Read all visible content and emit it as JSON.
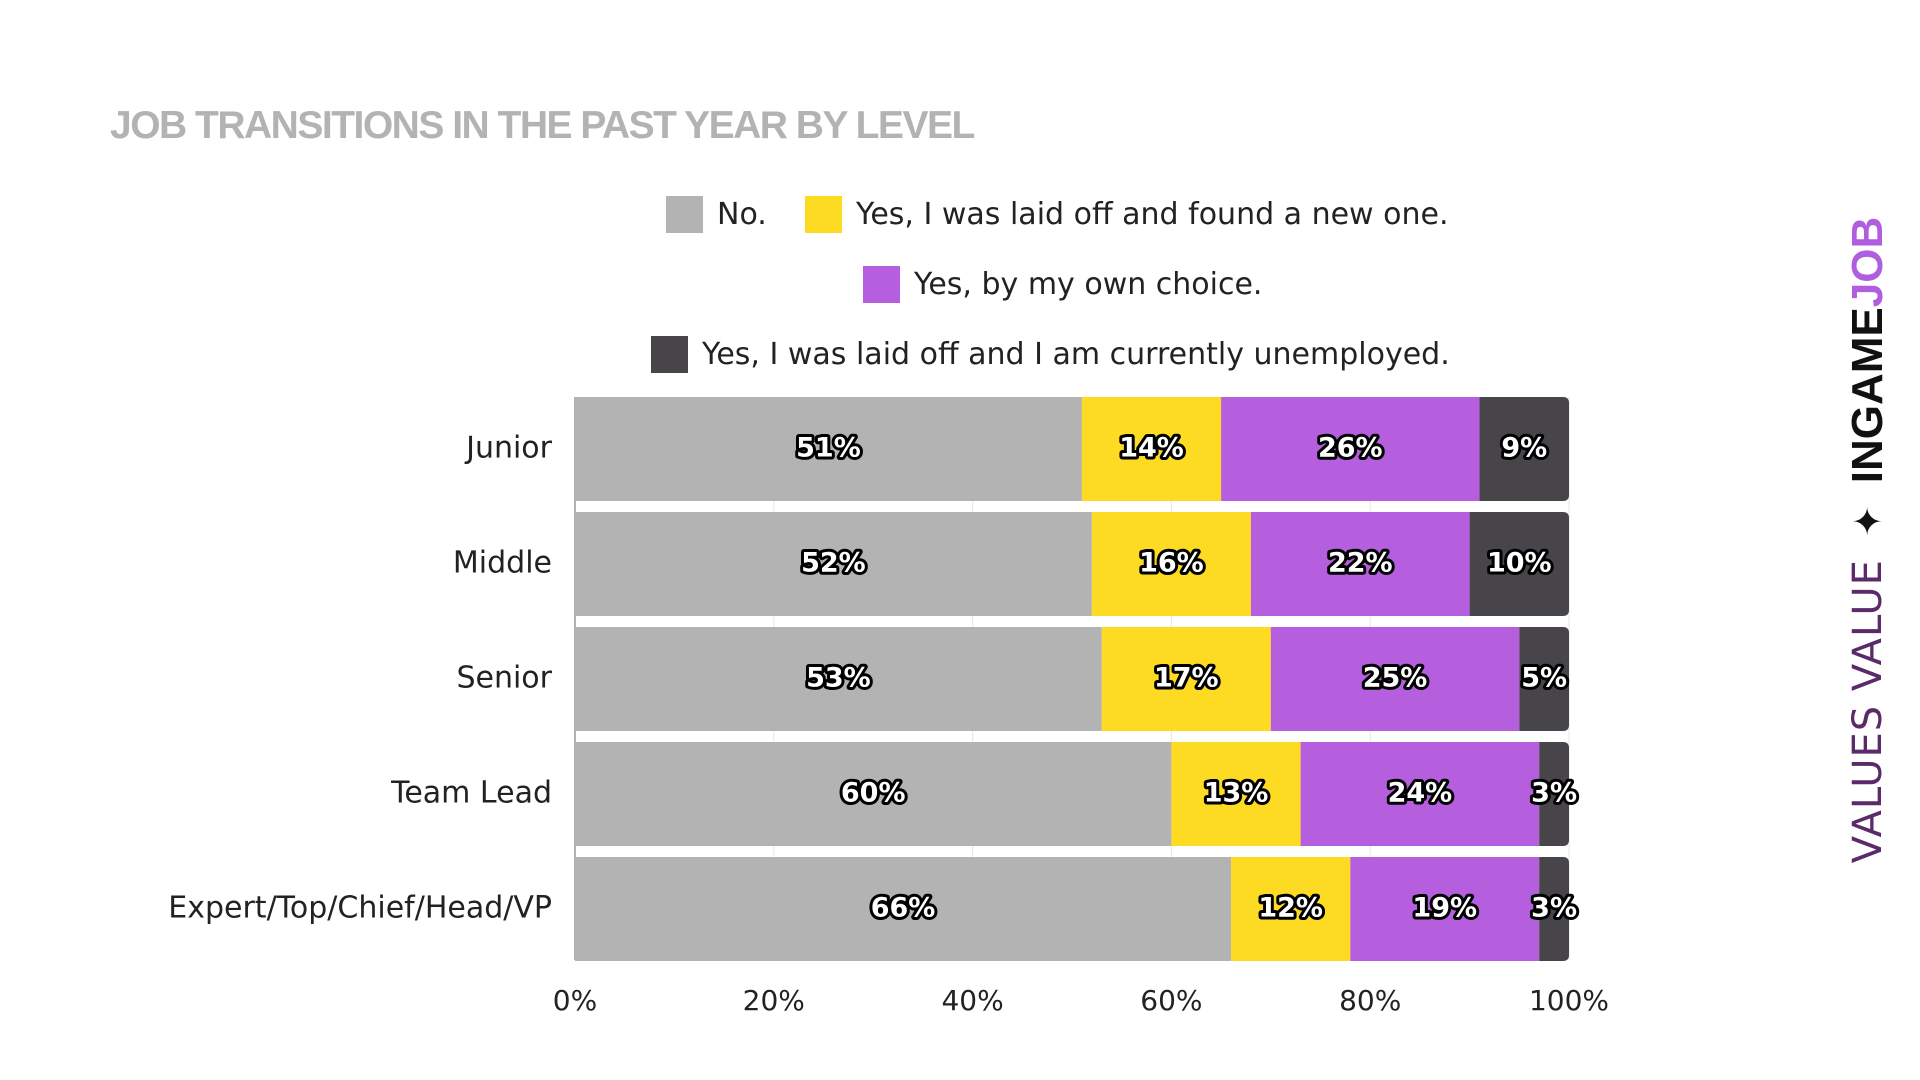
{
  "brand": {
    "tagline": "VALUES VALUE",
    "star": "✦",
    "name_part1": "INGAME",
    "name_part2": "JOB"
  },
  "chart_data": {
    "type": "bar",
    "orientation": "horizontal",
    "stacked": true,
    "title": "JOB TRANSITIONS IN THE PAST YEAR BY LEVEL",
    "categories": [
      "Junior",
      "Middle",
      "Senior",
      "Team Lead",
      "Expert/Top/Chief/Head/VP"
    ],
    "series": [
      {
        "name": "No.",
        "color": "#b3b3b3",
        "values": [
          51,
          52,
          53,
          60,
          66
        ]
      },
      {
        "name": "Yes, I was laid off and found a new one.",
        "color": "#fddb22",
        "values": [
          14,
          16,
          17,
          13,
          12
        ]
      },
      {
        "name": "Yes, by my own choice.",
        "color": "#b55fde",
        "values": [
          26,
          22,
          25,
          24,
          19
        ]
      },
      {
        "name": "Yes, I was laid off and I am currently unemployed.",
        "color": "#48454a",
        "values": [
          9,
          10,
          5,
          3,
          3
        ]
      }
    ],
    "xlim": [
      0,
      100
    ],
    "x_ticks": [
      "0%",
      "20%",
      "40%",
      "60%",
      "80%",
      "100%"
    ],
    "value_suffix": "%",
    "grid": true,
    "legend_position": "top"
  }
}
